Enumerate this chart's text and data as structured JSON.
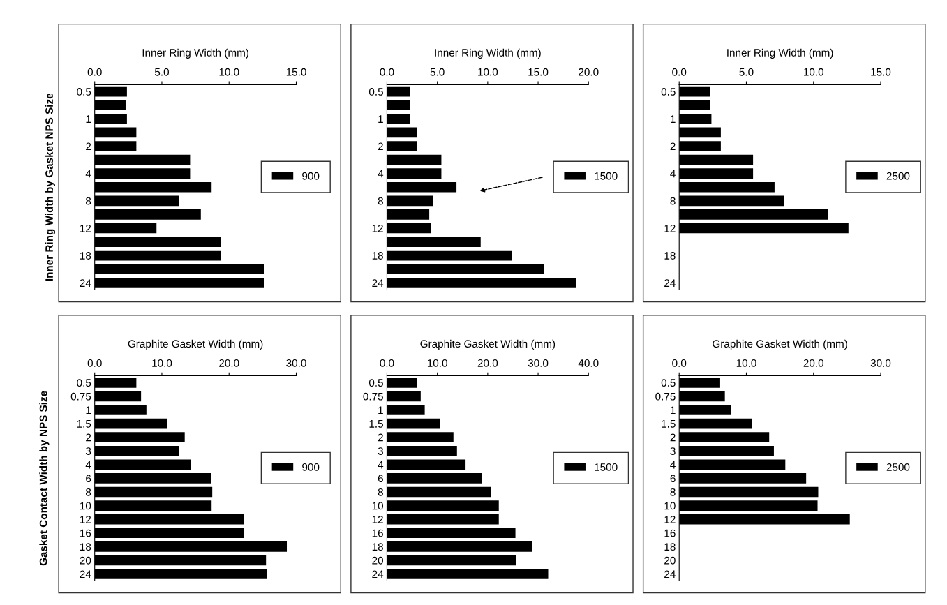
{
  "chart_data": [
    {
      "type": "bar",
      "orientation": "horizontal",
      "xlabel": "Inner Ring Width (mm)",
      "ylabel": "Inner Ring Width by Gasket NPS Size",
      "categories": [
        "0.5",
        null,
        "1",
        null,
        "2",
        null,
        "4",
        null,
        "8",
        null,
        "12",
        null,
        "18",
        null,
        "24"
      ],
      "series": [
        {
          "name": "900",
          "color": "#000000",
          "values": [
            2.4,
            2.3,
            2.4,
            3.1,
            3.1,
            7.1,
            7.1,
            8.7,
            6.3,
            7.9,
            4.6,
            9.4,
            9.4,
            12.6,
            12.6
          ]
        }
      ],
      "xlim": [
        0,
        15
      ],
      "xticks": [
        {
          "value": 0,
          "label": "0.0"
        },
        {
          "value": 5,
          "label": "5.0"
        },
        {
          "value": 10,
          "label": "10.0"
        },
        {
          "value": 15,
          "label": "15.0"
        }
      ],
      "legend": "right",
      "grid": false
    },
    {
      "type": "bar",
      "orientation": "horizontal",
      "xlabel": "Inner Ring Width (mm)",
      "categories": [
        "0.5",
        null,
        "1",
        null,
        "2",
        null,
        "4",
        null,
        "8",
        null,
        "12",
        null,
        "18",
        null,
        "24"
      ],
      "series": [
        {
          "name": "1500",
          "color": "#000000",
          "values": [
            2.3,
            2.3,
            2.3,
            3.0,
            3.0,
            5.4,
            5.4,
            6.9,
            4.6,
            4.2,
            4.4,
            9.3,
            12.4,
            15.6,
            18.8
          ]
        }
      ],
      "xlim": [
        0,
        20
      ],
      "xticks": [
        {
          "value": 0,
          "label": "0.0"
        },
        {
          "value": 5,
          "label": "5.0"
        },
        {
          "value": 10,
          "label": "10.0"
        },
        {
          "value": 15,
          "label": "15.0"
        },
        {
          "value": 20,
          "label": "20.0"
        }
      ],
      "legend": "right",
      "grid": false
    },
    {
      "type": "bar",
      "orientation": "horizontal",
      "xlabel": "Inner Ring Width (mm)",
      "categories": [
        "0.5",
        null,
        "1",
        null,
        "2",
        null,
        "4",
        null,
        "8",
        null,
        "12",
        null,
        "18",
        null,
        "24"
      ],
      "series": [
        {
          "name": "2500",
          "color": "#000000",
          "values": [
            2.3,
            2.3,
            2.4,
            3.1,
            3.1,
            5.5,
            5.5,
            7.1,
            7.8,
            11.1,
            12.6,
            null,
            null,
            null,
            null
          ]
        }
      ],
      "xlim": [
        0,
        15
      ],
      "xticks": [
        {
          "value": 0,
          "label": "0.0"
        },
        {
          "value": 5,
          "label": "5.0"
        },
        {
          "value": 10,
          "label": "10.0"
        },
        {
          "value": 15,
          "label": "15.0"
        }
      ],
      "legend": "right",
      "grid": false
    },
    {
      "type": "bar",
      "orientation": "horizontal",
      "xlabel": "Graphite Gasket Width (mm)",
      "ylabel": "Gasket Contact Width by NPS Size",
      "categories": [
        "0.5",
        "0.75",
        "1",
        "1.5",
        "2",
        "3",
        "4",
        "6",
        "8",
        "10",
        "12",
        "16",
        "18",
        "20",
        "24"
      ],
      "series": [
        {
          "name": "900",
          "color": "#000000",
          "values": [
            6.2,
            6.9,
            7.7,
            10.8,
            13.4,
            12.6,
            14.3,
            17.3,
            17.5,
            17.4,
            22.2,
            22.2,
            28.6,
            25.5,
            25.6
          ]
        }
      ],
      "xlim": [
        0,
        30
      ],
      "xticks": [
        {
          "value": 0,
          "label": "0.0"
        },
        {
          "value": 10,
          "label": "10.0"
        },
        {
          "value": 20,
          "label": "20.0"
        },
        {
          "value": 30,
          "label": "30.0"
        }
      ],
      "legend": "right",
      "grid": false
    },
    {
      "type": "bar",
      "orientation": "horizontal",
      "xlabel": "Graphite Gasket Width (mm)",
      "categories": [
        "0.5",
        "0.75",
        "1",
        "1.5",
        "2",
        "3",
        "4",
        "6",
        "8",
        "10",
        "12",
        "16",
        "18",
        "20",
        "24"
      ],
      "series": [
        {
          "name": "1500",
          "color": "#000000",
          "values": [
            6.0,
            6.7,
            7.5,
            10.6,
            13.2,
            13.9,
            15.6,
            18.8,
            20.6,
            22.2,
            22.2,
            25.5,
            28.8,
            25.6,
            32.0
          ]
        }
      ],
      "xlim": [
        0,
        40
      ],
      "xticks": [
        {
          "value": 0,
          "label": "0.0"
        },
        {
          "value": 10,
          "label": "10.0"
        },
        {
          "value": 20,
          "label": "20.0"
        },
        {
          "value": 30,
          "label": "30.0"
        },
        {
          "value": 40,
          "label": "40.0"
        }
      ],
      "legend": "right",
      "grid": false
    },
    {
      "type": "bar",
      "orientation": "horizontal",
      "xlabel": "Graphite Gasket Width (mm)",
      "categories": [
        "0.5",
        "0.75",
        "1",
        "1.5",
        "2",
        "3",
        "4",
        "6",
        "8",
        "10",
        "12",
        "16",
        "18",
        "20",
        "24"
      ],
      "series": [
        {
          "name": "2500",
          "color": "#000000",
          "values": [
            6.1,
            6.8,
            7.7,
            10.8,
            13.4,
            14.1,
            15.8,
            18.9,
            20.7,
            20.6,
            25.4,
            null,
            null,
            null,
            null
          ]
        }
      ],
      "xlim": [
        0,
        30
      ],
      "xticks": [
        {
          "value": 0,
          "label": "0.0"
        },
        {
          "value": 10,
          "label": "10.0"
        },
        {
          "value": 20,
          "label": "20.0"
        },
        {
          "value": 30,
          "label": "30.0"
        }
      ],
      "legend": "right",
      "grid": false
    }
  ]
}
